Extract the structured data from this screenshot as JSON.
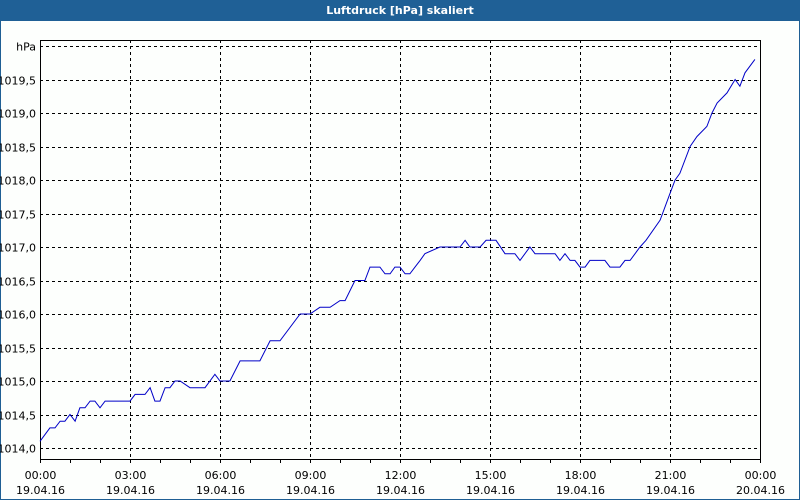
{
  "window": {
    "title": "Luftdruck [hPa] skaliert"
  },
  "colors": {
    "titlebar": "#1f6096",
    "border": "#1f5f94",
    "line": "#0000c8",
    "grid": "#000000"
  },
  "chart_data": {
    "type": "line",
    "title": "Luftdruck [hPa] skaliert",
    "xlabel": "",
    "ylabel": "hPa",
    "ylim": [
      1013.85,
      1020.0
    ],
    "xlim_hours": [
      0,
      24
    ],
    "grid": true,
    "legend": null,
    "y_ticks": [
      "hPa",
      "1019,5",
      "1019,0",
      "1018,5",
      "1018,0",
      "1017,5",
      "1017,0",
      "1016,5",
      "1016,0",
      "1015,5",
      "1015,0",
      "1014,5",
      "1014,0"
    ],
    "y_tick_values": [
      1019.9,
      1019.5,
      1019.0,
      1018.5,
      1018.0,
      1017.5,
      1017.0,
      1016.5,
      1016.0,
      1015.5,
      1015.0,
      1014.5,
      1014.0
    ],
    "x_ticks": [
      {
        "time": "00:00",
        "date": "19.04.16"
      },
      {
        "time": "03:00",
        "date": "19.04.16"
      },
      {
        "time": "06:00",
        "date": "19.04.16"
      },
      {
        "time": "09:00",
        "date": "19.04.16"
      },
      {
        "time": "12:00",
        "date": "19.04.16"
      },
      {
        "time": "15:00",
        "date": "19.04.16"
      },
      {
        "time": "18:00",
        "date": "19.04.16"
      },
      {
        "time": "21:00",
        "date": "19.04.16"
      },
      {
        "time": "00:00",
        "date": "20.04.16"
      }
    ],
    "series": [
      {
        "name": "Luftdruck",
        "unit": "hPa",
        "x_hours": [
          0.0,
          0.33,
          0.5,
          0.67,
          0.83,
          1.0,
          1.17,
          1.33,
          1.5,
          1.67,
          1.83,
          2.0,
          2.17,
          2.33,
          2.5,
          2.83,
          3.0,
          3.17,
          3.5,
          3.67,
          3.83,
          4.0,
          4.17,
          4.33,
          4.5,
          4.67,
          5.0,
          5.5,
          5.83,
          6.0,
          6.17,
          6.33,
          6.67,
          7.33,
          7.67,
          8.0,
          8.67,
          9.0,
          9.33,
          9.67,
          10.0,
          10.17,
          10.5,
          10.83,
          11.0,
          11.33,
          11.5,
          11.67,
          11.83,
          12.0,
          12.17,
          12.33,
          12.5,
          12.67,
          12.83,
          13.33,
          14.0,
          14.17,
          14.33,
          14.67,
          14.87,
          15.2,
          15.5,
          15.83,
          16.0,
          16.33,
          16.5,
          16.67,
          17.17,
          17.33,
          17.5,
          17.67,
          17.83,
          18.0,
          18.17,
          18.33,
          18.5,
          18.83,
          19.0,
          19.33,
          19.5,
          19.67,
          20.0,
          20.2,
          20.67,
          21.0,
          21.17,
          21.33,
          21.67,
          21.9,
          22.23,
          22.4,
          22.57,
          22.9,
          23.17,
          23.33,
          23.5,
          23.83
        ],
        "values": [
          1014.1,
          1014.3,
          1014.3,
          1014.4,
          1014.4,
          1014.5,
          1014.4,
          1014.6,
          1014.6,
          1014.7,
          1014.7,
          1014.6,
          1014.7,
          1014.7,
          1014.7,
          1014.7,
          1014.7,
          1014.8,
          1014.8,
          1014.9,
          1014.7,
          1014.7,
          1014.9,
          1014.9,
          1015.0,
          1015.0,
          1014.9,
          1014.9,
          1015.1,
          1015.0,
          1015.0,
          1015.0,
          1015.3,
          1015.3,
          1015.6,
          1015.6,
          1016.0,
          1016.0,
          1016.1,
          1016.1,
          1016.2,
          1016.2,
          1016.5,
          1016.5,
          1016.7,
          1016.7,
          1016.6,
          1016.6,
          1016.7,
          1016.7,
          1016.6,
          1016.6,
          1016.7,
          1016.8,
          1016.9,
          1017.0,
          1017.0,
          1017.1,
          1017.0,
          1017.0,
          1017.1,
          1017.1,
          1016.9,
          1016.9,
          1016.8,
          1017.0,
          1016.9,
          1016.9,
          1016.9,
          1016.8,
          1016.9,
          1016.8,
          1016.8,
          1016.7,
          1016.7,
          1016.8,
          1016.8,
          1016.8,
          1016.7,
          1016.7,
          1016.8,
          1016.8,
          1017.0,
          1017.1,
          1017.4,
          1017.8,
          1018.0,
          1018.1,
          1018.5,
          1018.65,
          1018.8,
          1019.0,
          1019.15,
          1019.3,
          1019.5,
          1019.4,
          1019.6,
          1019.8
        ]
      }
    ]
  }
}
